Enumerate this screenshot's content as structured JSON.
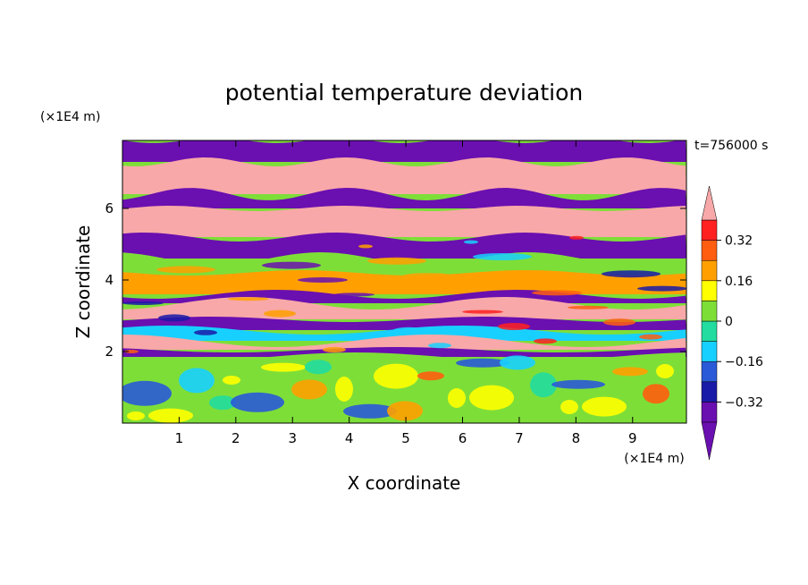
{
  "chart_data": {
    "type": "heatmap",
    "title": "potential temperature deviation",
    "xlabel": "X coordinate",
    "ylabel": "Z coordinate",
    "x_unit": "(×1E4 m)",
    "y_unit": "(×1E4 m)",
    "time_label": "t=756000 s",
    "x_ticks": [
      1,
      2,
      3,
      4,
      5,
      6,
      7,
      8,
      9
    ],
    "y_ticks": [
      2,
      4,
      6
    ],
    "xlim": [
      0,
      9.95
    ],
    "ylim": [
      0,
      7.9
    ],
    "colorbar": {
      "tick_values": [
        0.32,
        0.16,
        0,
        -0.16,
        -0.32
      ],
      "tick_labels": [
        "0.32",
        "0.16",
        "0",
        "−0.16",
        "−0.32"
      ],
      "levels": [
        -0.4,
        -0.32,
        -0.24,
        -0.16,
        -0.08,
        0,
        0.08,
        0.16,
        0.24,
        0.32,
        0.4
      ],
      "colors": [
        "#6a0fb0",
        "#1a1aa8",
        "#2a5ad8",
        "#18d0ff",
        "#22dca0",
        "#7ede38",
        "#ffff00",
        "#ffa000",
        "#ff5e10",
        "#ff2020",
        "#f8a8a8"
      ],
      "extend": "both"
    },
    "bands": [
      {
        "z_top": 7.9,
        "z_bottom": 7.3,
        "value": -0.45
      },
      {
        "z_top": 7.3,
        "z_bottom": 6.4,
        "value": 0.45
      },
      {
        "z_top": 6.4,
        "z_bottom": 6.0,
        "value": -0.45
      },
      {
        "z_top": 6.0,
        "z_bottom": 5.2,
        "value": 0.45
      },
      {
        "z_top": 5.2,
        "z_bottom": 4.6,
        "value": -0.45
      },
      {
        "z_top": 4.6,
        "z_bottom": 4.2,
        "value": 0.05
      },
      {
        "z_top": 4.2,
        "z_bottom": 3.6,
        "value": 0.18
      },
      {
        "z_top": 3.6,
        "z_bottom": 3.35,
        "value": -0.45
      },
      {
        "z_top": 3.35,
        "z_bottom": 2.9,
        "value": 0.45
      },
      {
        "z_top": 2.9,
        "z_bottom": 2.6,
        "value": -0.36
      },
      {
        "z_top": 2.6,
        "z_bottom": 2.3,
        "value": -0.1
      },
      {
        "z_top": 2.3,
        "z_bottom": 2.05,
        "value": 0.45
      },
      {
        "z_top": 2.05,
        "z_bottom": 1.85,
        "value": -0.45
      },
      {
        "z_top": 1.85,
        "z_bottom": 0,
        "value": 0.02
      }
    ],
    "grid": false
  }
}
